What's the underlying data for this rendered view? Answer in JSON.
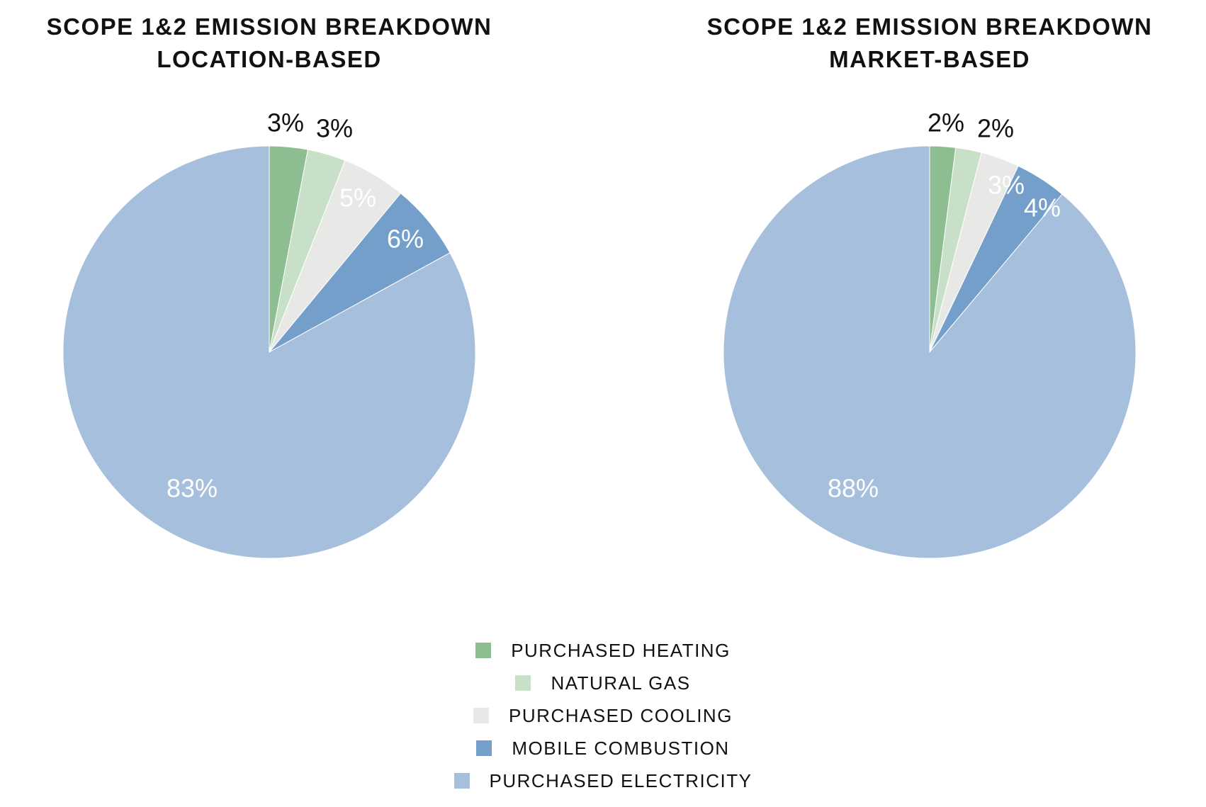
{
  "chart_data": [
    {
      "type": "pie",
      "title": [
        "SCOPE 1&2 EMISSION BREAKDOWN",
        "LOCATION-BASED"
      ],
      "categories": [
        "PURCHASED HEATING",
        "NATURAL GAS",
        "PURCHASED COOLING",
        "MOBILE COMBUSTION",
        "PURCHASED ELECTRICITY"
      ],
      "values": [
        3,
        3,
        5,
        6,
        83
      ],
      "labels": [
        "3%",
        "3%",
        "5%",
        "6%",
        "83%"
      ]
    },
    {
      "type": "pie",
      "title": [
        "SCOPE 1&2 EMISSION BREAKDOWN",
        "MARKET-BASED"
      ],
      "categories": [
        "PURCHASED HEATING",
        "NATURAL GAS",
        "PURCHASED COOLING",
        "MOBILE COMBUSTION",
        "PURCHASED ELECTRICITY"
      ],
      "values": [
        2,
        2,
        3,
        4,
        88
      ],
      "labels": [
        "2%",
        "2%",
        "3%",
        "4%",
        "88%"
      ]
    }
  ],
  "legend": {
    "placement": "bottom-center",
    "items": [
      {
        "label": "PURCHASED HEATING",
        "color": "#8dbe91"
      },
      {
        "label": "NATURAL GAS",
        "color": "#c8e0c8"
      },
      {
        "label": "PURCHASED COOLING",
        "color": "#e8e8e6"
      },
      {
        "label": "MOBILE COMBUSTION",
        "color": "#759fcb"
      },
      {
        "label": "PURCHASED ELECTRICITY",
        "color": "#a5bfdc"
      }
    ]
  }
}
